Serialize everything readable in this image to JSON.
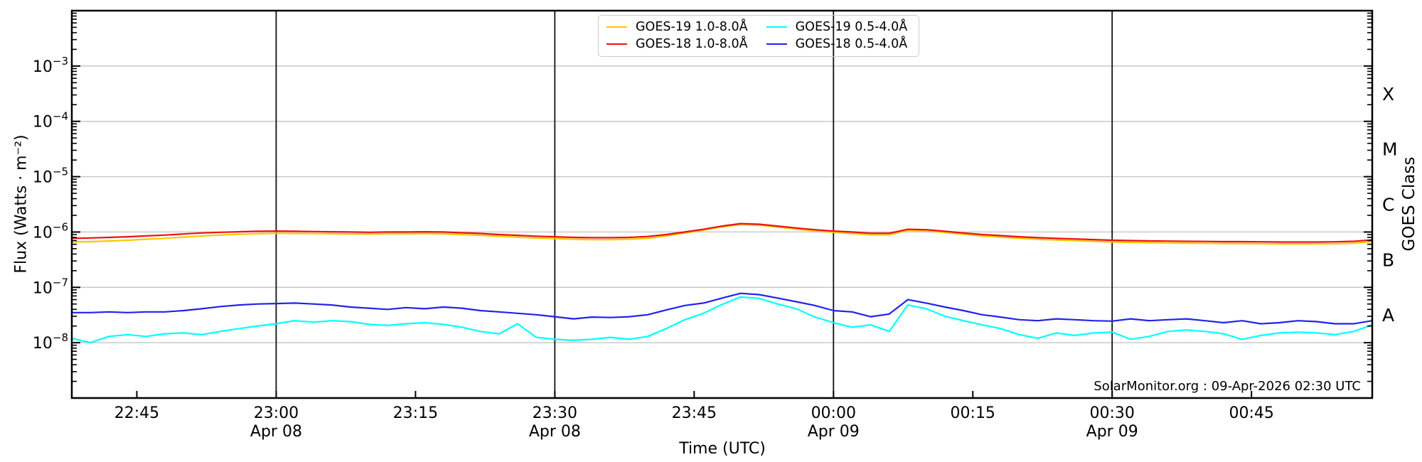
{
  "page": {
    "background": "#ffffff"
  },
  "annotation": {
    "text": "SolarMonitor.org : 09-Apr-2026 02:30 UTC"
  },
  "colors": {
    "grid": "#c9c9c9",
    "axis": "#000000",
    "time_gridline": "#111111",
    "legend_border": "#cccccc"
  },
  "chart_data": {
    "type": "line",
    "title": "",
    "xlabel": "Time (UTC)",
    "ylabel": "Flux (Watts · m⁻²)",
    "ylabel_right": "GOES Class",
    "x_axis": {
      "start_utc": "Apr 08 22:38",
      "end_utc": "Apr 09 00:58",
      "unit": "minutes since 22:00 UTC Apr 08",
      "domain_minutes": [
        38,
        178
      ],
      "ticks": [
        {
          "min": 45,
          "label": "22:45"
        },
        {
          "min": 60,
          "label": "23:00",
          "date": "Apr 08"
        },
        {
          "min": 75,
          "label": "23:15"
        },
        {
          "min": 90,
          "label": "23:30",
          "date": "Apr 08"
        },
        {
          "min": 105,
          "label": "23:45"
        },
        {
          "min": 120,
          "label": "00:00",
          "date": "Apr 09"
        },
        {
          "min": 135,
          "label": "00:15"
        },
        {
          "min": 150,
          "label": "00:30",
          "date": "Apr 09"
        },
        {
          "min": 165,
          "label": "00:45"
        }
      ],
      "vline_minutes": [
        60,
        90,
        120,
        150
      ]
    },
    "y_axis": {
      "scale": "log",
      "range": [
        1e-09,
        0.01
      ],
      "gridline_exponents": [
        -3,
        -4,
        -5,
        -6,
        -7,
        -8
      ]
    },
    "goes_class_labels": [
      {
        "label": "X",
        "exponent": -3.5
      },
      {
        "label": "M",
        "exponent": -4.5
      },
      {
        "label": "C",
        "exponent": -5.5
      },
      {
        "label": "B",
        "exponent": -6.5
      },
      {
        "label": "A",
        "exponent": -7.5
      }
    ],
    "legend": {
      "position": "top-center",
      "columns": 2
    },
    "series": [
      {
        "name": "goes19-long",
        "label": "GOES-19 1.0-8.0Å",
        "color": "#ffc800",
        "start_min": 38,
        "step_min": 2,
        "values": [
          6.6e-07,
          6.7e-07,
          6.9e-07,
          7.1e-07,
          7.4e-07,
          7.7e-07,
          8.1e-07,
          8.5e-07,
          8.8e-07,
          9.1e-07,
          9.3e-07,
          9.5e-07,
          9.4e-07,
          9.35e-07,
          9.3e-07,
          9.25e-07,
          9.2e-07,
          9.3e-07,
          9.3e-07,
          9.4e-07,
          9.3e-07,
          9e-07,
          8.7e-07,
          8.4e-07,
          8.1e-07,
          7.8e-07,
          7.6e-07,
          7.4e-07,
          7.3e-07,
          7.3e-07,
          7.4e-07,
          7.7e-07,
          8.5e-07,
          9.6e-07,
          1.08e-06,
          1.24e-06,
          1.36e-06,
          1.33e-06,
          1.23e-06,
          1.13e-06,
          1.05e-06,
          9.9e-07,
          9.4e-07,
          8.9e-07,
          8.9e-07,
          1.07e-06,
          1.05e-06,
          9.8e-07,
          9.1e-07,
          8.5e-07,
          8.1e-07,
          7.7e-07,
          7.4e-07,
          7.2e-07,
          7e-07,
          6.8e-07,
          6.6e-07,
          6.5e-07,
          6.4e-07,
          6.35e-07,
          6.3e-07,
          6.25e-07,
          6.2e-07,
          6.2e-07,
          6.15e-07,
          6.1e-07,
          6.1e-07,
          6.1e-07,
          6.15e-07,
          6.3e-07,
          6.7e-07
        ]
      },
      {
        "name": "goes18-long",
        "label": "GOES-18 1.0-8.0Å",
        "color": "#ee1111",
        "start_min": 38,
        "step_min": 2,
        "values": [
          7.7e-07,
          7.8e-07,
          8e-07,
          8.2e-07,
          8.5e-07,
          8.8e-07,
          9.2e-07,
          9.6e-07,
          9.9e-07,
          1.01e-06,
          1.03e-06,
          1.04e-06,
          1.03e-06,
          1.02e-06,
          1.01e-06,
          1e-06,
          9.9e-07,
          1e-06,
          1e-06,
          1.01e-06,
          1e-06,
          9.7e-07,
          9.4e-07,
          9e-07,
          8.7e-07,
          8.4e-07,
          8.2e-07,
          8e-07,
          7.9e-07,
          7.9e-07,
          8e-07,
          8.3e-07,
          9e-07,
          1e-06,
          1.12e-06,
          1.28e-06,
          1.42e-06,
          1.38e-06,
          1.28e-06,
          1.18e-06,
          1.1e-06,
          1.04e-06,
          1e-06,
          9.5e-07,
          9.5e-07,
          1.12e-06,
          1.1e-06,
          1.03e-06,
          9.6e-07,
          9e-07,
          8.6e-07,
          8.2e-07,
          7.9e-07,
          7.7e-07,
          7.5e-07,
          7.3e-07,
          7.1e-07,
          7e-07,
          6.9e-07,
          6.85e-07,
          6.8e-07,
          6.75e-07,
          6.7e-07,
          6.7e-07,
          6.65e-07,
          6.6e-07,
          6.6e-07,
          6.6e-07,
          6.65e-07,
          6.8e-07,
          7.2e-07
        ]
      },
      {
        "name": "goes19-short",
        "label": "GOES-19 0.5-4.0Å",
        "color": "#00ffff",
        "start_min": 38,
        "step_min": 2,
        "values": [
          1.2e-08,
          1e-08,
          1.3e-08,
          1.4e-08,
          1.3e-08,
          1.45e-08,
          1.5e-08,
          1.4e-08,
          1.6e-08,
          1.8e-08,
          2e-08,
          2.2e-08,
          2.5e-08,
          2.35e-08,
          2.5e-08,
          2.4e-08,
          2.15e-08,
          2.05e-08,
          2.2e-08,
          2.3e-08,
          2.15e-08,
          1.9e-08,
          1.6e-08,
          1.45e-08,
          2.2e-08,
          1.25e-08,
          1.15e-08,
          1.1e-08,
          1.15e-08,
          1.25e-08,
          1.15e-08,
          1.3e-08,
          1.8e-08,
          2.6e-08,
          3.4e-08,
          4.9e-08,
          6.7e-08,
          6.3e-08,
          5e-08,
          4.1e-08,
          2.9e-08,
          2.3e-08,
          1.9e-08,
          2.1e-08,
          1.6e-08,
          4.8e-08,
          4.1e-08,
          3e-08,
          2.5e-08,
          2.1e-08,
          1.8e-08,
          1.4e-08,
          1.2e-08,
          1.5e-08,
          1.35e-08,
          1.5e-08,
          1.55e-08,
          1.15e-08,
          1.3e-08,
          1.6e-08,
          1.7e-08,
          1.6e-08,
          1.45e-08,
          1.15e-08,
          1.35e-08,
          1.5e-08,
          1.55e-08,
          1.5e-08,
          1.4e-08,
          1.6e-08,
          2.1e-08
        ]
      },
      {
        "name": "goes18-short",
        "label": "GOES-18 0.5-4.0Å",
        "color": "#2222ee",
        "start_min": 38,
        "step_min": 2,
        "values": [
          3.5e-08,
          3.5e-08,
          3.6e-08,
          3.5e-08,
          3.6e-08,
          3.6e-08,
          3.8e-08,
          4.1e-08,
          4.5e-08,
          4.8e-08,
          5e-08,
          5.1e-08,
          5.2e-08,
          5e-08,
          4.8e-08,
          4.4e-08,
          4.2e-08,
          4e-08,
          4.3e-08,
          4.1e-08,
          4.4e-08,
          4.2e-08,
          3.8e-08,
          3.6e-08,
          3.4e-08,
          3.2e-08,
          2.95e-08,
          2.7e-08,
          2.9e-08,
          2.85e-08,
          2.95e-08,
          3.2e-08,
          3.9e-08,
          4.7e-08,
          5.2e-08,
          6.4e-08,
          7.8e-08,
          7.4e-08,
          6.4e-08,
          5.5e-08,
          4.7e-08,
          3.8e-08,
          3.6e-08,
          2.95e-08,
          3.3e-08,
          6e-08,
          5.2e-08,
          4.4e-08,
          3.8e-08,
          3.2e-08,
          2.9e-08,
          2.6e-08,
          2.5e-08,
          2.7e-08,
          2.6e-08,
          2.5e-08,
          2.45e-08,
          2.7e-08,
          2.5e-08,
          2.6e-08,
          2.7e-08,
          2.5e-08,
          2.3e-08,
          2.5e-08,
          2.2e-08,
          2.3e-08,
          2.5e-08,
          2.4e-08,
          2.2e-08,
          2.2e-08,
          2.5e-08
        ]
      }
    ]
  }
}
